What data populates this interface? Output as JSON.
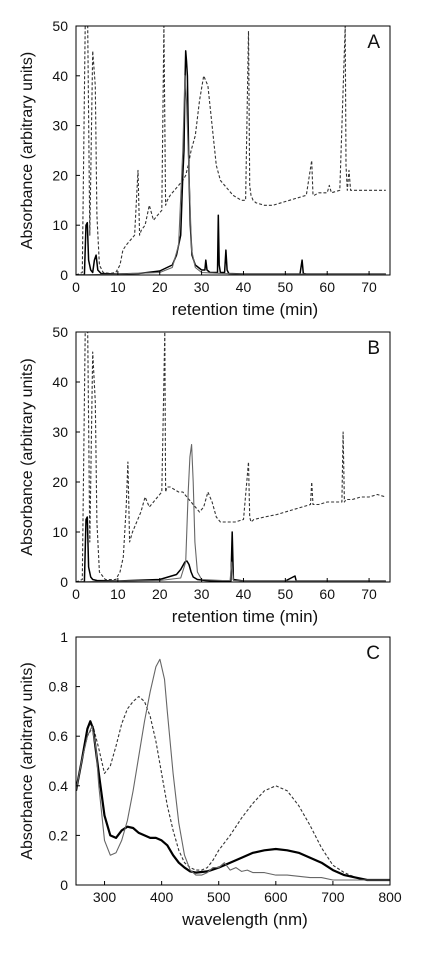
{
  "chart_data": [
    {
      "panel": "A",
      "type": "line",
      "xlabel": "retention time (min)",
      "ylabel": "Absorbance (arbitrary units)",
      "xlim": [
        0,
        75
      ],
      "ylim": [
        0,
        50
      ],
      "xticks": [
        0,
        10,
        20,
        30,
        40,
        50,
        60,
        70
      ],
      "yticks": [
        0,
        10,
        20,
        30,
        40,
        50
      ],
      "series": [
        {
          "style": "dashed",
          "x": [
            0,
            1.5,
            2.2,
            2.8,
            3.3,
            4.0,
            4.6,
            5.0,
            5.6,
            6.5,
            8,
            9.5,
            10.5,
            11.2,
            12,
            13,
            14,
            14.8,
            15.2,
            15.6,
            16.5,
            17.5,
            18.5,
            19.5,
            20.5,
            21.0,
            21.4,
            21.8,
            22.5,
            23.5,
            24.5,
            25.5,
            26.2,
            26.8,
            27.5,
            28.5,
            29.5,
            30.5,
            31.5,
            32.5,
            33.5,
            34.5,
            35.5,
            36.5,
            37.5,
            38.5,
            39.5,
            40.5,
            41.2,
            41.5,
            41.8,
            42.3,
            43,
            45,
            47,
            49,
            51,
            53,
            55,
            56.3,
            56.6,
            56.9,
            58,
            60,
            60.5,
            61,
            63,
            64.3,
            64.5,
            64.8,
            65.2,
            65.6,
            66,
            67,
            70,
            72,
            74
          ],
          "y": [
            0,
            0.5,
            50,
            50,
            8,
            45,
            38,
            12,
            2,
            0.5,
            0.3,
            0.5,
            2,
            5,
            6,
            7,
            8,
            21,
            8,
            9,
            10,
            14,
            11,
            12,
            13,
            50,
            14,
            15,
            16,
            17,
            18,
            19,
            20,
            22,
            25,
            28,
            35,
            40,
            38,
            30,
            22,
            19,
            18,
            17,
            16,
            15.5,
            15,
            15,
            49,
            18,
            16,
            15,
            14.5,
            14,
            14,
            14.5,
            15,
            15.5,
            16,
            23,
            16,
            16,
            16.5,
            16.5,
            18,
            16.5,
            17,
            50,
            22,
            17,
            21,
            17,
            17,
            17,
            17,
            17,
            17
          ]
        },
        {
          "style": "solid",
          "x": [
            0,
            2.0,
            2.4,
            2.7,
            3.0,
            3.5,
            4.0,
            4.4,
            4.8,
            5.2,
            6,
            10,
            15,
            20,
            23,
            24,
            25,
            25.5,
            25.8,
            26.0,
            26.2,
            26.4,
            26.6,
            26.8,
            27.0,
            27.3,
            27.7,
            28.5,
            30,
            30.8,
            31.0,
            31.3,
            32,
            33.8,
            34.0,
            34.2,
            34.5,
            35.5,
            35.8,
            36.1,
            36.5,
            40,
            45,
            50,
            53.5,
            54.0,
            54.3,
            55,
            60,
            65,
            70,
            74
          ],
          "y": [
            0,
            0,
            10,
            10.5,
            3,
            1,
            0.5,
            3,
            4,
            1,
            0.3,
            0.2,
            0.3,
            0.8,
            2,
            4,
            8,
            20,
            25,
            38,
            45,
            43,
            40,
            30,
            20,
            10,
            4,
            2,
            1,
            1,
            3,
            1,
            0.5,
            0.5,
            12,
            2,
            0.5,
            0.5,
            5,
            1,
            0.3,
            0.2,
            0.2,
            0.2,
            0.2,
            3,
            0.3,
            0.2,
            0.2,
            0.2,
            0.2,
            0.2
          ]
        },
        {
          "style": "solid-gray",
          "x": [
            0,
            10,
            20,
            23,
            24.5,
            25.5,
            26,
            26.4,
            26.8,
            27.2,
            27.6,
            28.5,
            30,
            35,
            40,
            50,
            60,
            70,
            74
          ],
          "y": [
            0,
            0.2,
            0.5,
            1.5,
            6,
            25,
            40,
            35,
            25,
            15,
            5,
            1.5,
            0.5,
            0.3,
            0.2,
            0.2,
            0.2,
            0.2,
            0.2
          ]
        }
      ]
    },
    {
      "panel": "B",
      "type": "line",
      "xlabel": "retention time (min)",
      "ylabel": "Absorbance (arbitrary units)",
      "xlim": [
        0,
        75
      ],
      "ylim": [
        0,
        50
      ],
      "xticks": [
        0,
        10,
        20,
        30,
        40,
        50,
        60,
        70
      ],
      "yticks": [
        0,
        10,
        20,
        30,
        40,
        50
      ],
      "series": [
        {
          "style": "dashed",
          "x": [
            0,
            1.5,
            2.2,
            2.8,
            3.3,
            4.0,
            4.6,
            5.0,
            5.6,
            7,
            9.5,
            10.5,
            11.3,
            12,
            12.4,
            12.8,
            13.5,
            14.5,
            15.5,
            16.5,
            17.5,
            18.5,
            19.5,
            20.5,
            21.2,
            21.4,
            21.7,
            22.5,
            23.5,
            24.5,
            25.5,
            26.5,
            27.5,
            28.5,
            29.5,
            30.5,
            31.5,
            32.5,
            33.5,
            34.5,
            36,
            38,
            40,
            41.2,
            41.5,
            41.8,
            42.5,
            45,
            48,
            50,
            52,
            54,
            56.0,
            56.3,
            56.6,
            58,
            60,
            62,
            63.5,
            63.8,
            64.1,
            64.5,
            66,
            68,
            70,
            72,
            74
          ],
          "y": [
            0,
            0.5,
            50,
            50,
            8,
            46,
            36,
            12,
            2,
            0.5,
            0.5,
            2,
            5,
            15,
            24,
            8,
            10,
            12,
            14,
            17,
            15,
            16,
            17,
            18,
            50,
            18,
            19,
            19,
            18.5,
            18,
            18,
            17,
            16,
            15,
            14,
            15,
            18,
            16,
            13,
            12,
            12,
            12,
            12.5,
            24,
            13,
            12,
            12.5,
            13,
            13.5,
            14,
            14.5,
            15,
            15.5,
            20,
            15.5,
            15.5,
            16,
            16,
            16,
            30,
            16,
            16.5,
            16.5,
            17,
            17,
            17.5,
            17
          ]
        },
        {
          "style": "solid",
          "x": [
            0,
            2.0,
            2.4,
            2.7,
            3.0,
            3.5,
            4.0,
            5,
            10,
            20,
            24,
            25,
            26,
            26.5,
            27,
            27.5,
            28,
            29,
            31,
            33,
            35,
            37.0,
            37.3,
            37.6,
            40,
            50,
            52.3,
            52.6,
            53,
            60,
            70,
            74
          ],
          "y": [
            0,
            0,
            12.5,
            13,
            3,
            1,
            0.5,
            0.3,
            0.2,
            0.5,
            1.5,
            2.5,
            4,
            4.2,
            3.5,
            2,
            1,
            0.5,
            0.3,
            0.2,
            0.2,
            0.2,
            10,
            0.5,
            0.2,
            0.2,
            1.2,
            0.2,
            0.2,
            0.2,
            0.2,
            0.2
          ]
        },
        {
          "style": "solid-gray",
          "x": [
            0,
            10,
            20,
            25,
            26.2,
            26.8,
            27.2,
            27.6,
            28.0,
            28.4,
            29,
            30,
            35,
            36.8,
            37.2,
            37.6,
            40,
            50,
            60,
            70,
            74
          ],
          "y": [
            0,
            0.2,
            0.3,
            0.8,
            4,
            18,
            25,
            27.5,
            20,
            8,
            2,
            0.5,
            0.3,
            0.3,
            4,
            0.3,
            0.2,
            0.2,
            0.2,
            0.2,
            0.2
          ]
        }
      ]
    },
    {
      "panel": "C",
      "type": "line",
      "xlabel": "wavelength  (nm)",
      "ylabel": "Absorbance (arbitrary units)",
      "xlim": [
        250,
        800
      ],
      "ylim": [
        0,
        1
      ],
      "xticks": [
        300,
        400,
        500,
        600,
        700,
        800
      ],
      "yticks": [
        0,
        0.2,
        0.4,
        0.6,
        0.8,
        1
      ],
      "series": [
        {
          "style": "dashed",
          "x": [
            250,
            260,
            270,
            280,
            290,
            300,
            310,
            320,
            330,
            340,
            350,
            360,
            370,
            380,
            390,
            400,
            410,
            420,
            430,
            440,
            450,
            460,
            470,
            480,
            490,
            500,
            520,
            540,
            560,
            580,
            600,
            620,
            640,
            660,
            680,
            700,
            720,
            740,
            760,
            780,
            800
          ],
          "y": [
            0.38,
            0.5,
            0.6,
            0.64,
            0.55,
            0.45,
            0.48,
            0.56,
            0.65,
            0.71,
            0.74,
            0.76,
            0.74,
            0.68,
            0.58,
            0.45,
            0.32,
            0.22,
            0.14,
            0.09,
            0.07,
            0.06,
            0.06,
            0.07,
            0.1,
            0.14,
            0.2,
            0.27,
            0.33,
            0.38,
            0.4,
            0.38,
            0.32,
            0.24,
            0.15,
            0.08,
            0.05,
            0.03,
            0.02,
            0.02,
            0.02
          ]
        },
        {
          "style": "solid-bold",
          "x": [
            250,
            260,
            270,
            275,
            280,
            290,
            300,
            310,
            320,
            330,
            340,
            350,
            360,
            370,
            380,
            390,
            400,
            410,
            420,
            430,
            440,
            450,
            460,
            480,
            500,
            520,
            540,
            560,
            580,
            600,
            620,
            640,
            660,
            680,
            700,
            720,
            740,
            760,
            780,
            800
          ],
          "y": [
            0.38,
            0.5,
            0.63,
            0.66,
            0.63,
            0.45,
            0.28,
            0.2,
            0.19,
            0.22,
            0.235,
            0.23,
            0.21,
            0.2,
            0.19,
            0.19,
            0.18,
            0.16,
            0.12,
            0.09,
            0.07,
            0.055,
            0.05,
            0.055,
            0.07,
            0.09,
            0.11,
            0.13,
            0.14,
            0.145,
            0.14,
            0.13,
            0.11,
            0.09,
            0.06,
            0.04,
            0.03,
            0.02,
            0.02,
            0.02
          ]
        },
        {
          "style": "solid-gray",
          "x": [
            250,
            260,
            270,
            278,
            285,
            290,
            300,
            310,
            320,
            330,
            340,
            350,
            360,
            370,
            380,
            390,
            397,
            405,
            410,
            420,
            430,
            440,
            450,
            460,
            470,
            480,
            490,
            500,
            510,
            520,
            530,
            540,
            550,
            560,
            580,
            600,
            620,
            640,
            660,
            680,
            700,
            720,
            740,
            760,
            780,
            800
          ],
          "y": [
            0.38,
            0.5,
            0.6,
            0.64,
            0.55,
            0.4,
            0.18,
            0.12,
            0.13,
            0.18,
            0.26,
            0.38,
            0.52,
            0.66,
            0.78,
            0.88,
            0.91,
            0.83,
            0.7,
            0.45,
            0.25,
            0.12,
            0.06,
            0.04,
            0.04,
            0.05,
            0.07,
            0.07,
            0.09,
            0.06,
            0.07,
            0.055,
            0.06,
            0.05,
            0.05,
            0.04,
            0.04,
            0.035,
            0.03,
            0.03,
            0.02,
            0.02,
            0.02,
            0.02,
            0.02,
            0.02
          ]
        }
      ]
    }
  ]
}
